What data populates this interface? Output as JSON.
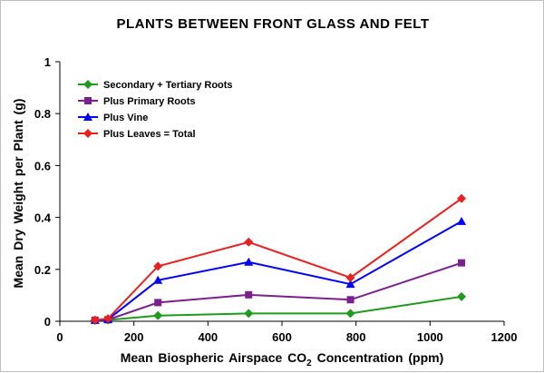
{
  "chart_data": {
    "type": "line",
    "title": "PLANTS BETWEEN FRONT GLASS AND FELT",
    "xlabel_prefix": "Mean Biospheric Airspace CO",
    "xlabel_subscript": "2",
    "xlabel_suffix": " Concentration (ppm)",
    "ylabel": "Mean Dry Weight per Plant (g)",
    "xlim": [
      0,
      1200
    ],
    "ylim": [
      0,
      1
    ],
    "xticks": [
      0,
      200,
      400,
      600,
      800,
      1000,
      1200
    ],
    "yticks": [
      0,
      0.2,
      0.4,
      0.6,
      0.8,
      1
    ],
    "ytick_labels": [
      "0",
      "0.2",
      "0.4",
      "0.6",
      "0.8",
      "1"
    ],
    "x": [
      95,
      130,
      265,
      510,
      785,
      1085
    ],
    "series": [
      {
        "name": "Secondary + Tertiary Roots",
        "color": "#1f9a1f",
        "marker": "diamond",
        "values": [
          0.003,
          0.005,
          0.022,
          0.03,
          0.03,
          0.095
        ]
      },
      {
        "name": "Plus Primary Roots",
        "color": "#7b1f8c",
        "marker": "square",
        "values": [
          0.004,
          0.006,
          0.072,
          0.102,
          0.083,
          0.225
        ]
      },
      {
        "name": "Plus Vine",
        "color": "#0000ff",
        "marker": "triangle",
        "values": [
          0.004,
          0.007,
          0.158,
          0.228,
          0.143,
          0.385
        ]
      },
      {
        "name": "Plus Leaves = Total",
        "color": "#e8201f",
        "marker": "diamond",
        "values": [
          0.005,
          0.01,
          0.212,
          0.305,
          0.168,
          0.473
        ]
      }
    ],
    "legend_position": "top-left",
    "grid": false
  }
}
